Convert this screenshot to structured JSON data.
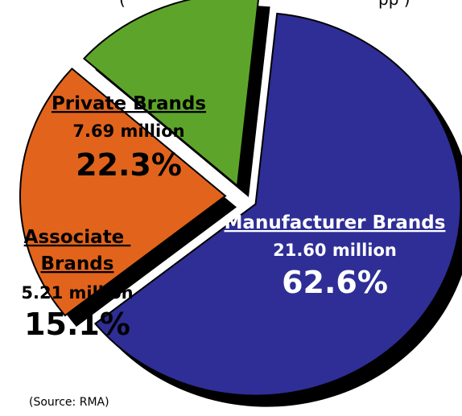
{
  "chart_data": {
    "type": "pie",
    "title": "",
    "categories": [
      "Manufacturer Brands",
      "Private Brands",
      "Associate Brands"
    ],
    "values_million": [
      "21.60 million",
      "7.69 million",
      "5.21 million"
    ],
    "percent_labels": [
      "62.6%",
      "22.3%",
      "15.1%"
    ],
    "values": [
      62.6,
      22.3,
      15.1
    ],
    "colors": [
      "#2e2e96",
      "#e2641c",
      "#5da52a"
    ],
    "source": "(Source: RMA)"
  }
}
